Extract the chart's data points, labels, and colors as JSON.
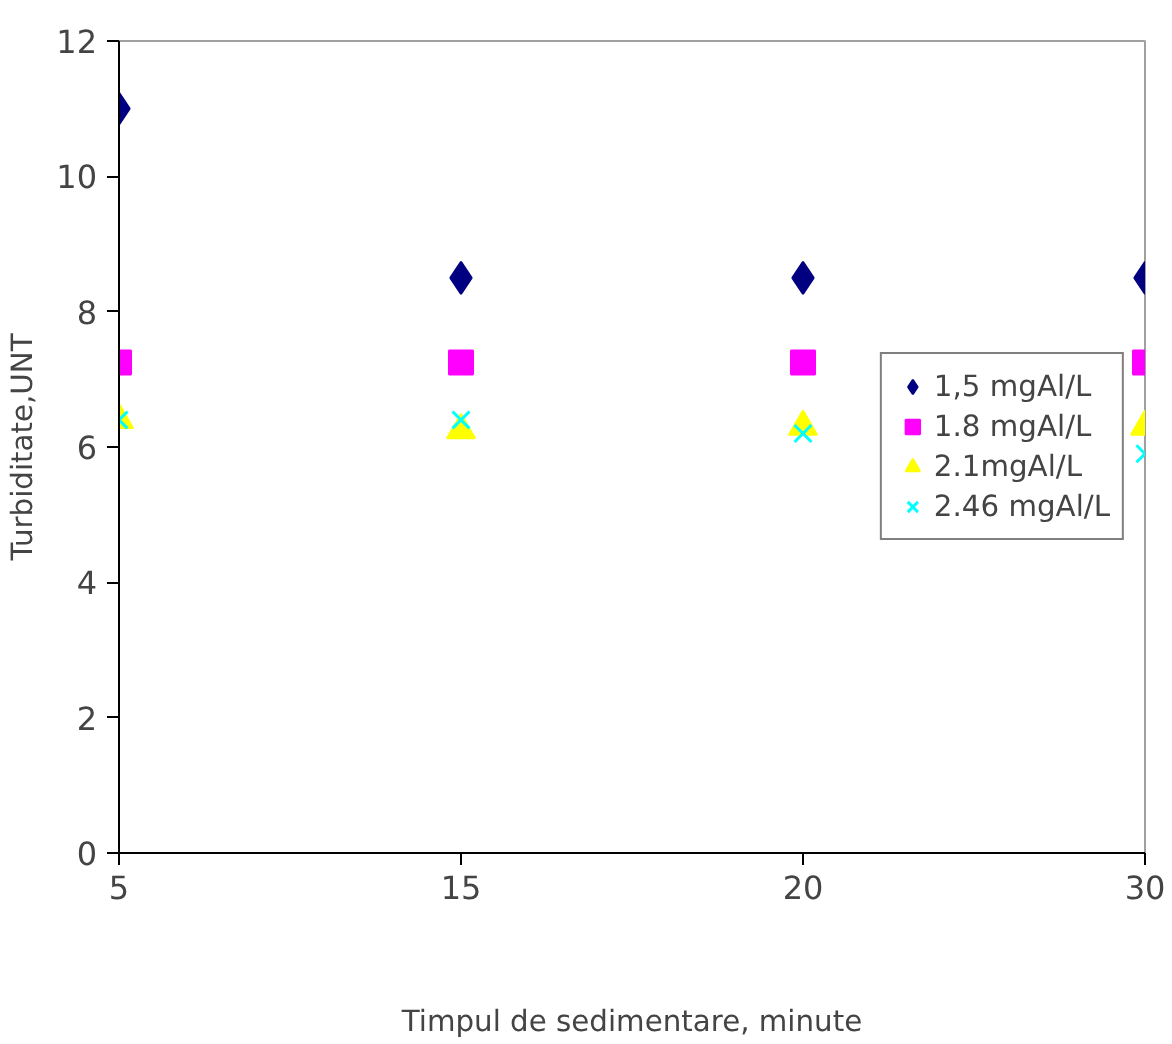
{
  "chart_data": {
    "type": "scatter",
    "xlabel": "Timpul de sedimentare, minute",
    "ylabel": "Turbiditate,UNT",
    "categories": [
      "5",
      "15",
      "20",
      "30"
    ],
    "ylim": [
      0,
      12
    ],
    "yticks": [
      0,
      2,
      4,
      6,
      8,
      10,
      12
    ],
    "grid": false,
    "legend": "right",
    "series": [
      {
        "name": "1,5 mgAl/L",
        "color": "#000080",
        "marker": "diamond",
        "values": [
          11,
          8.5,
          8.5,
          8.5
        ]
      },
      {
        "name": "1.8 mgAl/L",
        "color": "#ff00ff",
        "marker": "square",
        "values": [
          7.25,
          7.25,
          7.25,
          7.25
        ]
      },
      {
        "name": "2.1mgAl/L",
        "color": "#ffff00",
        "marker": "triangle",
        "values": [
          6.4,
          6.25,
          6.3,
          6.3
        ]
      },
      {
        "name": "2.46 mgAl/L",
        "color": "#00ffff",
        "marker": "cross",
        "values": [
          6.4,
          6.4,
          6.2,
          5.9
        ]
      }
    ]
  }
}
